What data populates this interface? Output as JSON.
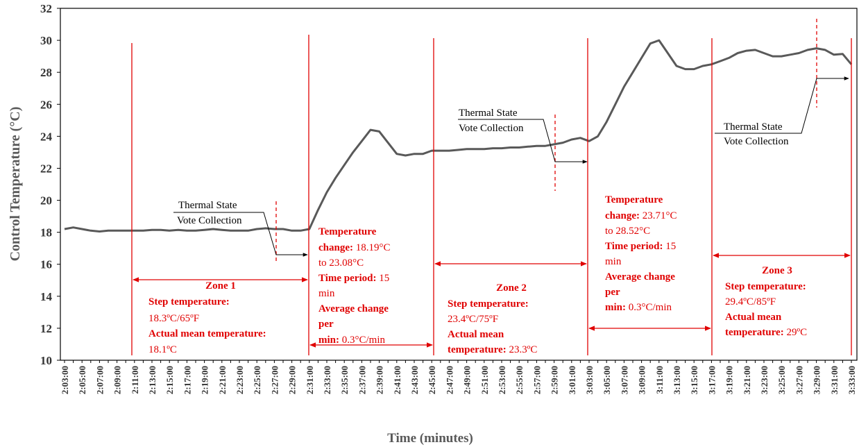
{
  "chart_data": {
    "type": "line",
    "y_label": "Control Temperature (°C)",
    "x_label": "Time (minutes)",
    "color": "#595959",
    "ylim": [
      10,
      32
    ],
    "yticks": [
      10,
      12,
      14,
      16,
      18,
      20,
      22,
      24,
      26,
      28,
      30,
      32
    ],
    "categories": [
      "2:03:00",
      null,
      "2:05:00",
      null,
      "2:07:00",
      null,
      "2:09:00",
      null,
      "2:11:00",
      null,
      "2:13:00",
      null,
      "2:15:00",
      null,
      "2:17:00",
      null,
      "2:19:00",
      null,
      "2:21:00",
      null,
      "2:23:00",
      null,
      "2:25:00",
      null,
      "2:27:00",
      null,
      "2:29:00",
      null,
      "2:31:00",
      null,
      "2:33:00",
      null,
      "2:35:00",
      null,
      "2:37:00",
      null,
      "2:39:00",
      null,
      "2:41:00",
      null,
      "2:43:00",
      null,
      "2:45:00",
      null,
      "2:47:00",
      null,
      "2:49:00",
      null,
      "2:51:00",
      null,
      "2:53:00",
      null,
      "2:55:00",
      null,
      "2:57:00",
      null,
      "2:59:00",
      null,
      "3:01:00",
      null,
      "3:03:00",
      null,
      "3:05:00",
      null,
      "3:07:00",
      null,
      "3:09:00",
      null,
      "3:11:00",
      null,
      "3:13:00",
      null,
      "3:15:00",
      null,
      "3:17:00",
      null,
      "3:19:00",
      null,
      "3:21:00",
      null,
      "3:23:00",
      null,
      "3:25:00",
      null,
      "3:27:00",
      null,
      "3:29:00",
      null,
      "3:31:00",
      null,
      "3:33:00"
    ],
    "values": [
      18.2,
      18.3,
      18.2,
      18.1,
      18.05,
      18.1,
      18.1,
      18.1,
      18.1,
      18.1,
      18.15,
      18.15,
      18.1,
      18.15,
      18.1,
      18.1,
      18.15,
      18.2,
      18.15,
      18.1,
      18.1,
      18.1,
      18.2,
      18.25,
      18.2,
      18.2,
      18.1,
      18.1,
      18.2,
      19.4,
      20.5,
      21.4,
      22.2,
      23.0,
      23.7,
      24.4,
      24.3,
      23.6,
      22.9,
      22.8,
      22.9,
      22.9,
      23.1,
      23.1,
      23.1,
      23.15,
      23.2,
      23.2,
      23.2,
      23.25,
      23.25,
      23.3,
      23.3,
      23.35,
      23.4,
      23.4,
      23.5,
      23.6,
      23.8,
      23.9,
      23.7,
      24.0,
      24.9,
      26.0,
      27.1,
      28.0,
      28.9,
      29.8,
      30.0,
      29.2,
      28.4,
      28.2,
      28.2,
      28.4,
      28.5,
      28.7,
      28.9,
      29.2,
      29.35,
      29.4,
      29.2,
      29.0,
      29.0,
      29.1,
      29.2,
      29.4,
      29.5,
      29.4,
      29.1,
      29.15,
      28.5
    ],
    "annotations": {
      "vote_1": [
        "Thermal State",
        "Vote Collection"
      ],
      "vote_2": [
        "Thermal State",
        "Vote Collection"
      ],
      "vote_3": [
        "Thermal State",
        "Vote Collection"
      ],
      "zone_1": [
        "Zone 1",
        "Step temperature:",
        "18.3ºC/65ºF",
        "Actual mean temperature:",
        "18.1ºC"
      ],
      "change_1": [
        "Temperature",
        "change:",
        "18.19°C",
        "to 23.08°C",
        "Time period:",
        "15",
        "min",
        "Average change",
        "per",
        "min:",
        "0.3°C/min"
      ],
      "zone_2": [
        "Zone 2",
        "Step temperature:",
        "23.4ºC/75ºF",
        "Actual mean",
        "temperature:",
        "23.3ºC"
      ],
      "change_2": [
        "Temperature",
        "change:",
        "23.71°C",
        "to 28.52°C",
        "Time period:",
        "15",
        "min",
        "Average change",
        "per",
        "min:",
        "0.3°C/min"
      ],
      "zone_3": [
        "Zone 3",
        "Step temperature:",
        "29.4ºC/85ºF",
        "Actual mean",
        "temperature:",
        "29ºC"
      ]
    }
  }
}
